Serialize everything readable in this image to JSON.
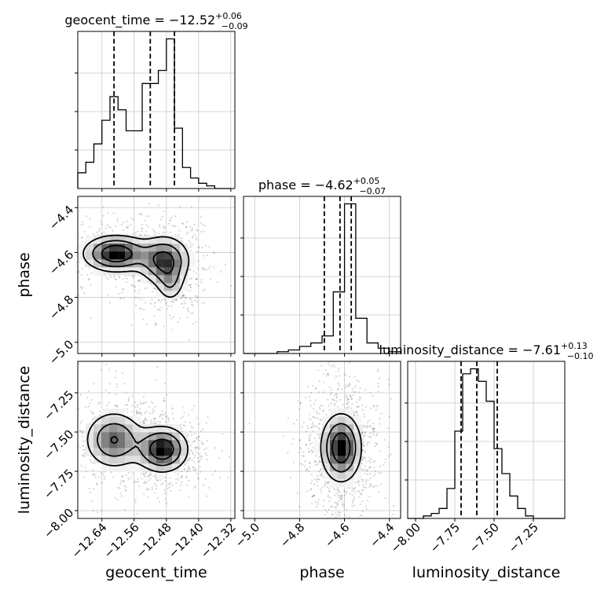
{
  "chart_data": {
    "type": "corner",
    "parameters": [
      "geocent_time",
      "phase",
      "luminosity_distance"
    ],
    "axis_labels": {
      "geocent_time": "geocent_time",
      "phase": "phase",
      "luminosity_distance": "luminosity_distance"
    },
    "ranges": {
      "geocent_time": [
        -12.7,
        -12.31
      ],
      "phase": [
        -5.05,
        -4.35
      ],
      "luminosity_distance": [
        -8.05,
        -7.05
      ]
    },
    "ticks": {
      "geocent_time": [
        -12.64,
        -12.56,
        -12.48,
        -12.4,
        -12.32
      ],
      "phase": [
        -5.0,
        -4.8,
        -4.6,
        -4.4
      ],
      "luminosity_distance": [
        -8.0,
        -7.75,
        -7.5,
        -7.25
      ]
    },
    "tick_labels": {
      "geocent_time": [
        "−12.64",
        "−12.56",
        "−12.48",
        "−12.40",
        "−12.32"
      ],
      "phase": [
        "−5.0",
        "−4.8",
        "−4.6",
        "−4.4"
      ],
      "luminosity_distance": [
        "−8.00",
        "−7.75",
        "−7.50",
        "−7.25"
      ]
    },
    "titles": [
      {
        "parameter": "geocent_time",
        "prefix": "geocent_time = ",
        "value": "−12.52",
        "plus": "+0.06",
        "minus": "−0.09"
      },
      {
        "parameter": "phase",
        "prefix": "phase = ",
        "value": "−4.62",
        "plus": "+0.05",
        "minus": "−0.07"
      },
      {
        "parameter": "luminosity_distance",
        "prefix": "luminosity_distance = ",
        "value": "−7.61",
        "plus": "+0.13",
        "minus": "−0.10"
      }
    ],
    "quantiles": {
      "geocent_time": [
        -12.61,
        -12.52,
        -12.46
      ],
      "phase": [
        -4.69,
        -4.62,
        -4.57
      ],
      "luminosity_distance": [
        -7.71,
        -7.61,
        -7.48
      ]
    },
    "histograms": {
      "geocent_time": {
        "edges": [
          -12.7,
          -12.68,
          -12.66,
          -12.64,
          -12.62,
          -12.6,
          -12.58,
          -12.56,
          -12.54,
          -12.52,
          -12.5,
          -12.48,
          -12.46,
          -12.44,
          -12.42,
          -12.4,
          -12.38,
          -12.36,
          -12.34,
          -12.32
        ],
        "counts": [
          6,
          10,
          17,
          26,
          35,
          30,
          22,
          22,
          40,
          40,
          45,
          57,
          23,
          8,
          4,
          2,
          1,
          0,
          0
        ]
      },
      "phase": {
        "edges": [
          -5.05,
          -5.0,
          -4.95,
          -4.9,
          -4.85,
          -4.8,
          -4.75,
          -4.7,
          -4.65,
          -4.6,
          -4.55,
          -4.5,
          -4.45,
          -4.4,
          -4.35
        ],
        "counts": [
          0,
          0,
          0,
          1,
          2,
          4,
          6,
          10,
          35,
          85,
          20,
          6,
          3,
          1
        ]
      },
      "luminosity_distance": {
        "edges": [
          -8.05,
          -8.0,
          -7.95,
          -7.9,
          -7.85,
          -7.8,
          -7.75,
          -7.7,
          -7.65,
          -7.6,
          -7.55,
          -7.5,
          -7.45,
          -7.4,
          -7.35,
          -7.3,
          -7.25,
          -7.2,
          -7.15,
          -7.1,
          -7.05
        ],
        "counts": [
          0,
          0,
          1,
          2,
          4,
          12,
          35,
          58,
          60,
          55,
          47,
          28,
          18,
          9,
          4,
          1,
          0,
          0,
          0,
          0
        ]
      }
    },
    "pairs": [
      {
        "x": "geocent_time",
        "y": "phase",
        "modes": [
          {
            "cx": -12.605,
            "cy": -4.605,
            "sx": 0.045,
            "sy": 0.045,
            "w": 1.0
          },
          {
            "cx": -12.485,
            "cy": -4.635,
            "sx": 0.035,
            "sy": 0.06,
            "w": 0.85
          },
          {
            "cx": -12.47,
            "cy": -4.74,
            "sx": 0.02,
            "sy": 0.05,
            "w": 0.35
          }
        ],
        "scatter_spread": [
          0.07,
          0.08
        ]
      },
      {
        "x": "geocent_time",
        "y": "luminosity_distance",
        "modes": [
          {
            "cx": -12.61,
            "cy": -7.55,
            "sx": 0.04,
            "sy": 0.1,
            "w": 0.75
          },
          {
            "cx": -12.49,
            "cy": -7.61,
            "sx": 0.035,
            "sy": 0.08,
            "w": 1.0
          }
        ],
        "scatter_spread": [
          0.08,
          0.18
        ]
      },
      {
        "x": "phase",
        "y": "luminosity_distance",
        "modes": [
          {
            "cx": -4.615,
            "cy": -7.6,
            "sx": 0.05,
            "sy": 0.12,
            "w": 1.0
          }
        ],
        "scatter_spread": [
          0.12,
          0.18
        ]
      }
    ]
  }
}
